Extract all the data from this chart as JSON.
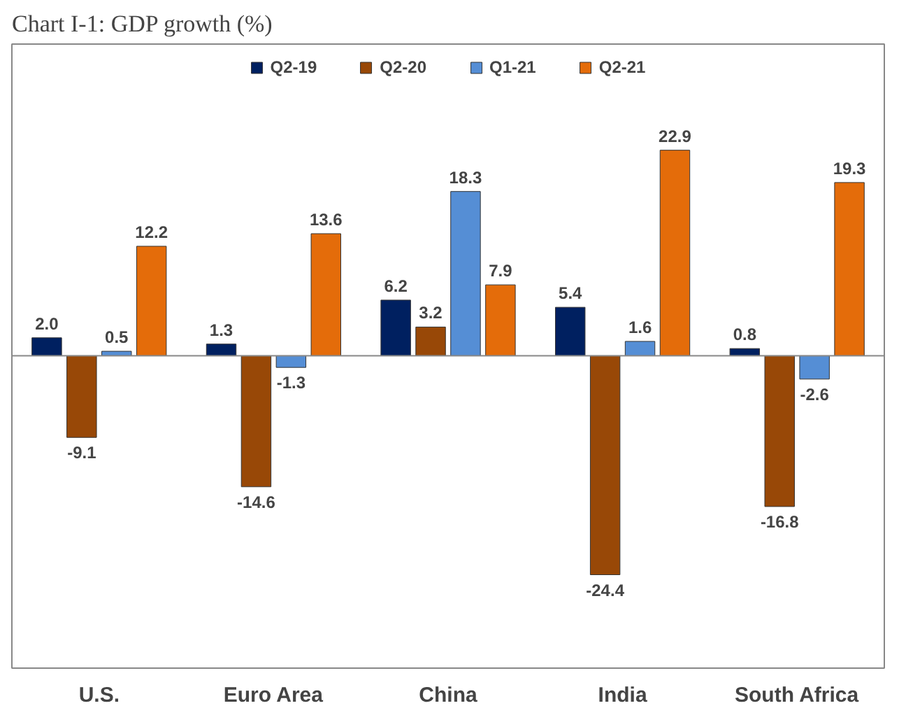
{
  "chart_data": {
    "type": "bar",
    "title": "Chart I-1: GDP growth (%)",
    "categories": [
      "U.S.",
      "Euro Area",
      "China",
      "India",
      "South Africa"
    ],
    "series": [
      {
        "name": "Q2-19",
        "color": "#002060",
        "values": [
          2.0,
          1.3,
          6.2,
          5.4,
          0.8
        ],
        "value_labels": [
          "2.0",
          "1.3",
          "6.2",
          "5.4",
          "0.8"
        ]
      },
      {
        "name": "Q2-20",
        "color": "#984807",
        "values": [
          -9.1,
          -14.6,
          3.2,
          -24.4,
          -16.8
        ]
      },
      {
        "name": "Q1-21",
        "color": "#558ed5",
        "values": [
          0.5,
          -1.3,
          18.3,
          1.6,
          -2.6
        ]
      },
      {
        "name": "Q2-21",
        "color": "#e46c0a",
        "values": [
          12.2,
          13.6,
          7.9,
          22.9,
          19.3
        ]
      }
    ],
    "data_labels": true,
    "legend": "top",
    "grid": false
  }
}
